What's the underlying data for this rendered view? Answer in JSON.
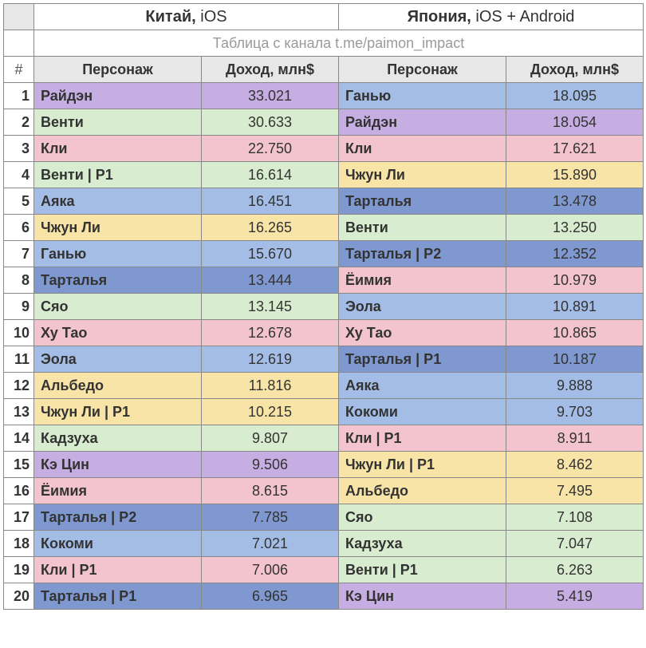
{
  "header": {
    "left_bold": "Китай,",
    "left_rest": " iOS",
    "right_bold": "Япония,",
    "right_rest": " iOS + Android",
    "subtitle": "Таблица с канала t.me/paimon_impact",
    "hash": "#",
    "col_char": "Персонаж",
    "col_rev": "Доход, млн$"
  },
  "colors": {
    "purple": "#c6aee3",
    "green": "#d8eccf",
    "pink": "#f3c4cd",
    "blue": "#a4bde6",
    "yellow": "#f9e4a8",
    "dblue": "#7f98cf",
    "white": "#ffffff",
    "border": "#888888",
    "header_bg": "#e7e7e7"
  },
  "rows": [
    {
      "n": 1,
      "cn_name": "Райдэн",
      "cn_rev": "33.021",
      "cn_c": "purple",
      "jp_name": "Ганью",
      "jp_rev": "18.095",
      "jp_c": "blue"
    },
    {
      "n": 2,
      "cn_name": "Венти",
      "cn_rev": "30.633",
      "cn_c": "green",
      "jp_name": "Райдэн",
      "jp_rev": "18.054",
      "jp_c": "purple"
    },
    {
      "n": 3,
      "cn_name": "Кли",
      "cn_rev": "22.750",
      "cn_c": "pink",
      "jp_name": "Кли",
      "jp_rev": "17.621",
      "jp_c": "pink"
    },
    {
      "n": 4,
      "cn_name": "Венти | Р1",
      "cn_rev": "16.614",
      "cn_c": "green",
      "jp_name": "Чжун Ли",
      "jp_rev": "15.890",
      "jp_c": "yellow"
    },
    {
      "n": 5,
      "cn_name": "Аяка",
      "cn_rev": "16.451",
      "cn_c": "blue",
      "jp_name": "Тарталья",
      "jp_rev": "13.478",
      "jp_c": "dblue"
    },
    {
      "n": 6,
      "cn_name": "Чжун Ли",
      "cn_rev": "16.265",
      "cn_c": "yellow",
      "jp_name": "Венти",
      "jp_rev": "13.250",
      "jp_c": "green"
    },
    {
      "n": 7,
      "cn_name": "Ганью",
      "cn_rev": "15.670",
      "cn_c": "blue",
      "jp_name": "Тарталья | Р2",
      "jp_rev": "12.352",
      "jp_c": "dblue"
    },
    {
      "n": 8,
      "cn_name": "Тарталья",
      "cn_rev": "13.444",
      "cn_c": "dblue",
      "jp_name": "Ёимия",
      "jp_rev": "10.979",
      "jp_c": "pink"
    },
    {
      "n": 9,
      "cn_name": "Сяо",
      "cn_rev": "13.145",
      "cn_c": "green",
      "jp_name": "Эола",
      "jp_rev": "10.891",
      "jp_c": "blue"
    },
    {
      "n": 10,
      "cn_name": "Ху Тао",
      "cn_rev": "12.678",
      "cn_c": "pink",
      "jp_name": "Ху Тао",
      "jp_rev": "10.865",
      "jp_c": "pink"
    },
    {
      "n": 11,
      "cn_name": "Эола",
      "cn_rev": "12.619",
      "cn_c": "blue",
      "jp_name": "Тарталья | Р1",
      "jp_rev": "10.187",
      "jp_c": "dblue"
    },
    {
      "n": 12,
      "cn_name": "Альбедо",
      "cn_rev": "11.816",
      "cn_c": "yellow",
      "jp_name": "Аяка",
      "jp_rev": "9.888",
      "jp_c": "blue"
    },
    {
      "n": 13,
      "cn_name": "Чжун Ли | Р1",
      "cn_rev": "10.215",
      "cn_c": "yellow",
      "jp_name": "Кокоми",
      "jp_rev": "9.703",
      "jp_c": "blue"
    },
    {
      "n": 14,
      "cn_name": "Кадзуха",
      "cn_rev": "9.807",
      "cn_c": "green",
      "jp_name": "Кли | Р1",
      "jp_rev": "8.911",
      "jp_c": "pink"
    },
    {
      "n": 15,
      "cn_name": "Кэ Цин",
      "cn_rev": "9.506",
      "cn_c": "purple",
      "jp_name": "Чжун Ли | Р1",
      "jp_rev": "8.462",
      "jp_c": "yellow"
    },
    {
      "n": 16,
      "cn_name": "Ёимия",
      "cn_rev": "8.615",
      "cn_c": "pink",
      "jp_name": "Альбедо",
      "jp_rev": "7.495",
      "jp_c": "yellow"
    },
    {
      "n": 17,
      "cn_name": "Тарталья | Р2",
      "cn_rev": "7.785",
      "cn_c": "dblue",
      "jp_name": "Сяо",
      "jp_rev": "7.108",
      "jp_c": "green"
    },
    {
      "n": 18,
      "cn_name": "Кокоми",
      "cn_rev": "7.021",
      "cn_c": "blue",
      "jp_name": "Кадзуха",
      "jp_rev": "7.047",
      "jp_c": "green"
    },
    {
      "n": 19,
      "cn_name": "Кли | Р1",
      "cn_rev": "7.006",
      "cn_c": "pink",
      "jp_name": "Венти | Р1",
      "jp_rev": "6.263",
      "jp_c": "green"
    },
    {
      "n": 20,
      "cn_name": "Тарталья | Р1",
      "cn_rev": "6.965",
      "cn_c": "dblue",
      "jp_name": "Кэ Цин",
      "jp_rev": "5.419",
      "jp_c": "purple"
    }
  ]
}
